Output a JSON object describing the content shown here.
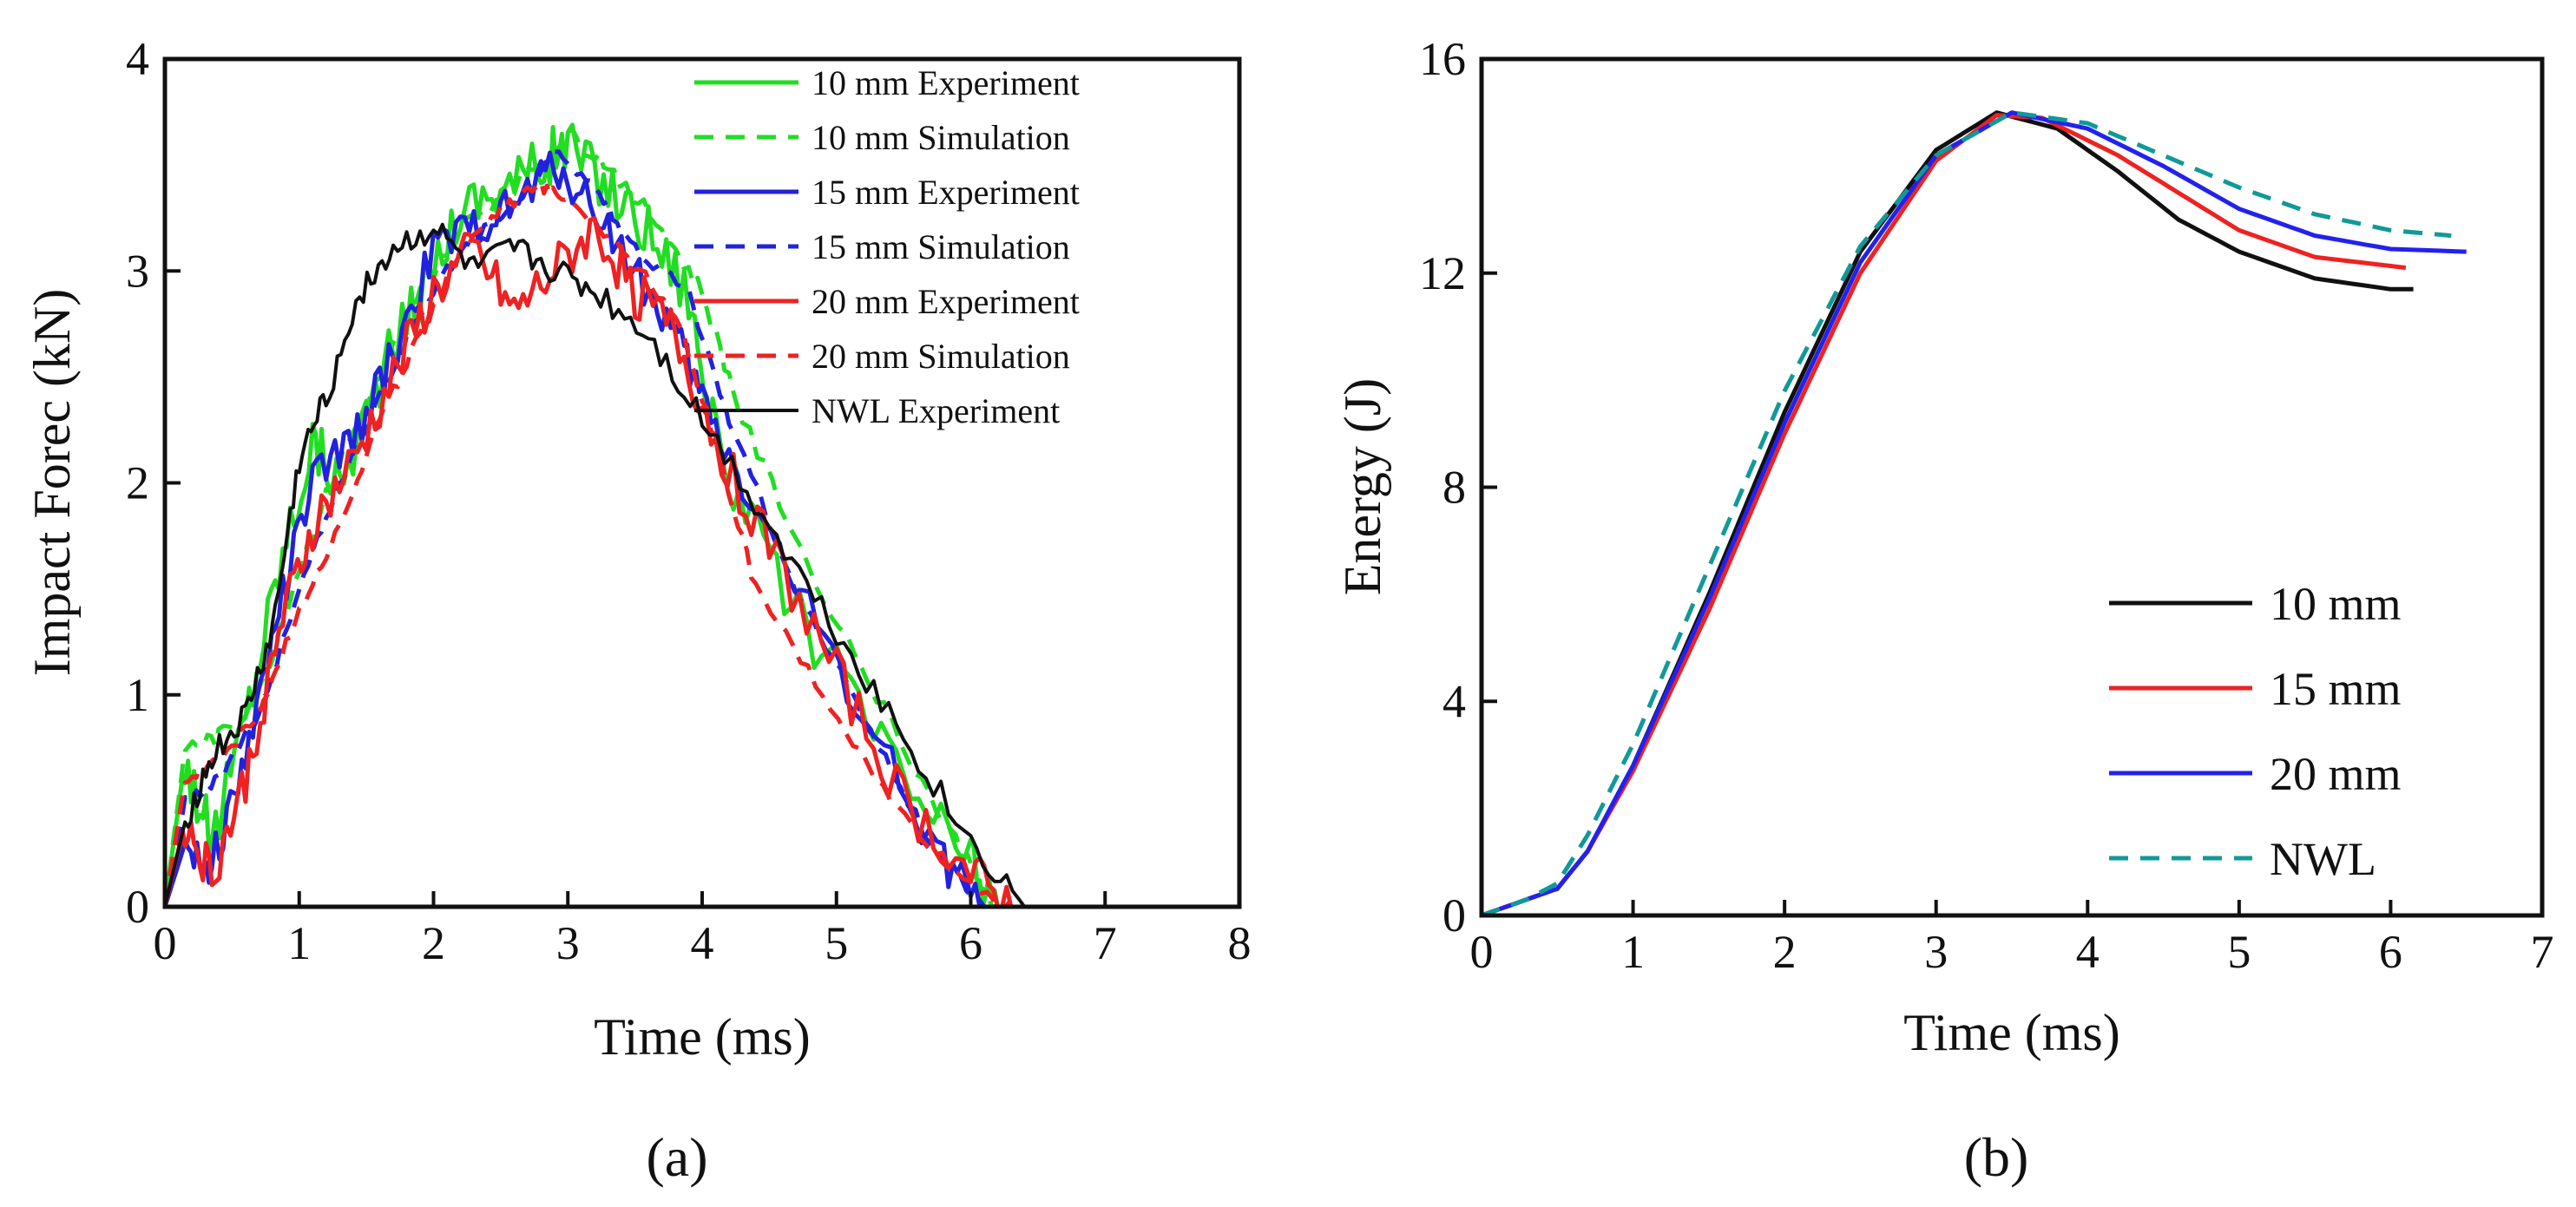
{
  "chart_data": [
    {
      "id": "a",
      "type": "line",
      "caption": "(a)",
      "xlabel": "Time (ms)",
      "ylabel": "Impact Forec (kN)",
      "xlim": [
        0,
        8
      ],
      "ylim": [
        0,
        4
      ],
      "xticks": [
        0,
        1,
        2,
        3,
        4,
        5,
        6,
        7,
        8
      ],
      "yticks": [
        0,
        1,
        2,
        3,
        4
      ],
      "legend_position": "top-right",
      "series": [
        {
          "name": "10 mm Experiment",
          "color": "#22dd22",
          "dash": "solid",
          "width": 5,
          "noise": 0.14,
          "x": [
            0,
            0.15,
            0.35,
            0.6,
            0.85,
            1.1,
            1.3,
            1.6,
            1.9,
            2.2,
            2.5,
            2.8,
            3.0,
            3.3,
            3.6,
            3.9,
            4.1,
            4.5,
            5.0,
            5.5,
            6.0,
            6.2
          ],
          "y": [
            0,
            0.7,
            0.3,
            0.9,
            1.6,
            2.2,
            2.0,
            2.5,
            2.9,
            3.3,
            3.4,
            3.5,
            3.6,
            3.4,
            3.2,
            2.9,
            2.2,
            1.6,
            1.1,
            0.6,
            0.2,
            0
          ]
        },
        {
          "name": "10 mm Simulation",
          "color": "#22dd22",
          "dash": "dashed",
          "width": 5,
          "noise": 0.04,
          "x": [
            0,
            0.15,
            0.4,
            0.7,
            1.0,
            1.3,
            1.6,
            1.9,
            2.2,
            2.6,
            3.0,
            3.3,
            3.7,
            4.0,
            4.3,
            4.8,
            5.3,
            5.8,
            6.2
          ],
          "y": [
            0,
            0.75,
            0.8,
            1.0,
            1.6,
            2.1,
            2.5,
            2.9,
            3.2,
            3.4,
            3.65,
            3.5,
            3.2,
            2.9,
            2.3,
            1.6,
            1.0,
            0.4,
            0
          ]
        },
        {
          "name": "15 mm Experiment",
          "color": "#2222dd",
          "dash": "solid",
          "width": 5,
          "noise": 0.1,
          "x": [
            0,
            0.15,
            0.35,
            0.6,
            0.85,
            1.1,
            1.4,
            1.7,
            2.0,
            2.3,
            2.6,
            2.9,
            3.2,
            3.5,
            3.8,
            4.0,
            4.3,
            4.8,
            5.3,
            5.8,
            6.1
          ],
          "y": [
            0,
            0.3,
            0.2,
            0.7,
            1.4,
            2.0,
            2.2,
            2.6,
            3.1,
            3.2,
            3.3,
            3.5,
            3.3,
            3.0,
            2.7,
            2.4,
            2.0,
            1.4,
            0.8,
            0.2,
            0
          ]
        },
        {
          "name": "15 mm Simulation",
          "color": "#2222dd",
          "dash": "dashed",
          "width": 5,
          "noise": 0.03,
          "x": [
            0,
            0.15,
            0.4,
            0.7,
            1.0,
            1.3,
            1.6,
            1.9,
            2.2,
            2.6,
            2.9,
            3.2,
            3.5,
            3.9,
            4.2,
            4.7,
            5.2,
            5.7,
            6.1
          ],
          "y": [
            0,
            0.5,
            0.6,
            0.9,
            1.5,
            2.0,
            2.4,
            2.8,
            3.1,
            3.3,
            3.55,
            3.4,
            3.1,
            2.9,
            2.3,
            1.5,
            0.9,
            0.3,
            0
          ]
        },
        {
          "name": "20 mm Experiment",
          "color": "#ee2222",
          "dash": "solid",
          "width": 5,
          "noise": 0.12,
          "x": [
            0,
            0.15,
            0.35,
            0.6,
            0.85,
            1.1,
            1.4,
            1.7,
            2.0,
            2.3,
            2.6,
            2.9,
            3.2,
            3.5,
            3.8,
            4.1,
            4.5,
            5.0,
            5.5,
            6.0,
            6.3
          ],
          "y": [
            0,
            0.4,
            0.15,
            0.6,
            1.3,
            1.8,
            2.1,
            2.5,
            2.9,
            3.1,
            2.8,
            3.0,
            3.2,
            2.9,
            2.7,
            2.2,
            1.7,
            1.1,
            0.5,
            0.15,
            0
          ]
        },
        {
          "name": "20 mm Simulation",
          "color": "#ee2222",
          "dash": "dashed",
          "width": 5,
          "noise": 0.03,
          "x": [
            0,
            0.15,
            0.4,
            0.7,
            1.0,
            1.3,
            1.6,
            1.9,
            2.2,
            2.5,
            2.8,
            3.0,
            3.4,
            3.8,
            4.1,
            4.4,
            4.9,
            5.4,
            5.9,
            6.3
          ],
          "y": [
            0,
            0.6,
            0.7,
            0.9,
            1.4,
            1.8,
            2.3,
            2.7,
            3.1,
            3.3,
            3.4,
            3.35,
            3.1,
            2.8,
            2.2,
            1.5,
            1.0,
            0.5,
            0.15,
            0
          ]
        },
        {
          "name": "NWL Experiment",
          "color": "#111111",
          "dash": "solid",
          "width": 4,
          "noise": 0.07,
          "x": [
            0,
            0.15,
            0.35,
            0.6,
            0.8,
            1.0,
            1.2,
            1.45,
            1.7,
            2.0,
            2.3,
            2.6,
            2.9,
            3.2,
            3.6,
            4.0,
            4.5,
            5.0,
            5.5,
            6.0,
            6.4
          ],
          "y": [
            0,
            0.4,
            0.7,
            0.9,
            1.3,
            2.1,
            2.4,
            2.9,
            3.1,
            3.2,
            3.0,
            3.1,
            3.0,
            2.9,
            2.7,
            2.3,
            1.8,
            1.3,
            0.8,
            0.3,
            0
          ]
        }
      ]
    },
    {
      "id": "b",
      "type": "line",
      "caption": "(b)",
      "xlabel": "Time (ms)",
      "ylabel": "Energy (J)",
      "xlim": [
        0,
        7
      ],
      "ylim": [
        0,
        16
      ],
      "xticks": [
        0,
        1,
        2,
        3,
        4,
        5,
        6,
        7
      ],
      "yticks": [
        0,
        4,
        8,
        12,
        16
      ],
      "legend_position": "bottom-right",
      "series": [
        {
          "name": "10 mm",
          "color": "#111111",
          "dash": "solid",
          "width": 5,
          "x": [
            0,
            0.3,
            0.5,
            0.7,
            1.0,
            1.5,
            2.0,
            2.5,
            3.0,
            3.4,
            3.8,
            4.2,
            4.6,
            5.0,
            5.5,
            6.0,
            6.15
          ],
          "y": [
            0,
            0.3,
            0.5,
            1.2,
            2.8,
            6.0,
            9.4,
            12.4,
            14.3,
            15.0,
            14.7,
            13.9,
            13.0,
            12.4,
            11.9,
            11.7,
            11.7
          ]
        },
        {
          "name": "15 mm",
          "color": "#ee2222",
          "dash": "solid",
          "width": 5,
          "x": [
            0,
            0.3,
            0.5,
            0.7,
            1.0,
            1.5,
            2.0,
            2.5,
            3.0,
            3.4,
            3.7,
            4.2,
            4.6,
            5.0,
            5.5,
            6.1
          ],
          "y": [
            0,
            0.3,
            0.5,
            1.2,
            2.7,
            5.7,
            9.0,
            12.0,
            14.1,
            14.95,
            14.9,
            14.2,
            13.5,
            12.8,
            12.3,
            12.1
          ]
        },
        {
          "name": "20 mm",
          "color": "#2222ee",
          "dash": "solid",
          "width": 5,
          "x": [
            0,
            0.3,
            0.5,
            0.7,
            1.0,
            1.5,
            2.0,
            2.5,
            3.0,
            3.5,
            4.0,
            4.5,
            5.0,
            5.5,
            6.0,
            6.5
          ],
          "y": [
            0,
            0.3,
            0.5,
            1.2,
            2.8,
            5.9,
            9.2,
            12.2,
            14.2,
            15.0,
            14.7,
            14.0,
            13.2,
            12.7,
            12.45,
            12.4
          ]
        },
        {
          "name": "NWL",
          "color": "#119999",
          "dash": "dashed",
          "width": 5,
          "x": [
            0,
            0.3,
            0.5,
            0.7,
            1.0,
            1.5,
            2.0,
            2.5,
            3.0,
            3.5,
            4.0,
            4.5,
            5.0,
            5.5,
            6.0,
            6.4
          ],
          "y": [
            0,
            0.3,
            0.6,
            1.5,
            3.2,
            6.5,
            9.8,
            12.5,
            14.2,
            15.0,
            14.8,
            14.2,
            13.6,
            13.1,
            12.8,
            12.7
          ]
        }
      ]
    }
  ]
}
